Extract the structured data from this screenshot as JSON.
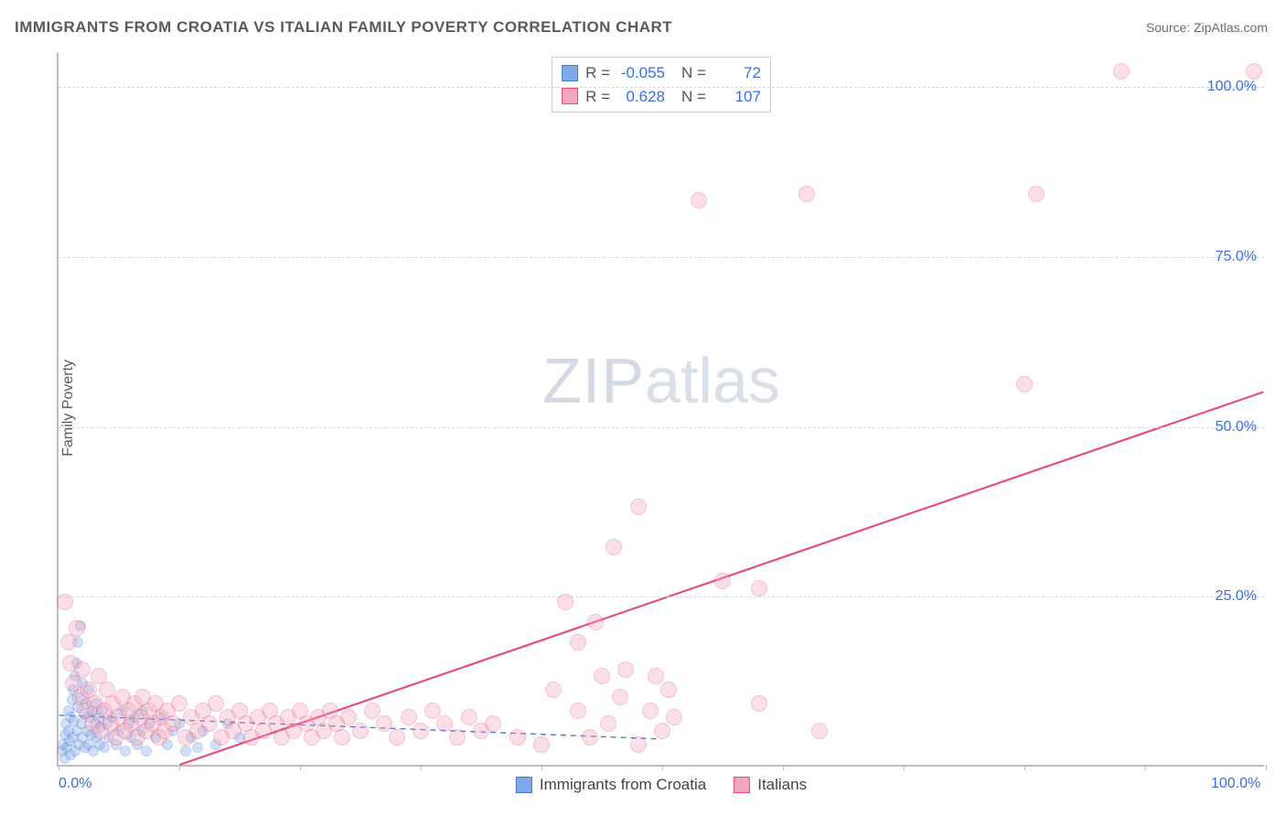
{
  "title": "IMMIGRANTS FROM CROATIA VS ITALIAN FAMILY POVERTY CORRELATION CHART",
  "source_label": "Source: ZipAtlas.com",
  "ylabel": "Family Poverty",
  "watermark": {
    "zip": "ZIP",
    "atlas": "atlas"
  },
  "chart": {
    "type": "scatter",
    "xlim": [
      0,
      100
    ],
    "ylim": [
      0,
      105
    ],
    "background_color": "#ffffff",
    "grid_color": "#d8d8d8",
    "axis_color": "#bdbdbd",
    "tick_label_color": "#3a6fd8",
    "x_ticks": [
      0,
      10,
      20,
      30,
      40,
      50,
      60,
      70,
      80,
      90,
      100
    ],
    "y_gridlines": [
      25,
      50,
      75,
      100
    ],
    "x_tick_labels": [
      {
        "x": 0,
        "label": "0.0%"
      },
      {
        "x": 100,
        "label": "100.0%"
      }
    ],
    "y_tick_labels": [
      {
        "y": 25,
        "label": "25.0%"
      },
      {
        "y": 50,
        "label": "50.0%"
      },
      {
        "y": 75,
        "label": "75.0%"
      },
      {
        "y": 100,
        "label": "100.0%"
      }
    ],
    "marker_radius": 9,
    "marker_radius_small": 6,
    "marker_opacity": 0.35,
    "series": [
      {
        "name": "Immigrants from Croatia",
        "color_fill": "#7ea8e8",
        "color_stroke": "#4a7bd0",
        "R": "-0.055",
        "N": "72",
        "trend": {
          "x1": 0,
          "y1": 7.3,
          "x2": 50,
          "y2": 3.8,
          "dash": "6,5",
          "width": 1.4
        },
        "points": [
          {
            "x": 0.3,
            "y": 2.0
          },
          {
            "x": 0.4,
            "y": 3.0
          },
          {
            "x": 0.5,
            "y": 1.0
          },
          {
            "x": 0.5,
            "y": 4.5
          },
          {
            "x": 0.6,
            "y": 6.0
          },
          {
            "x": 0.7,
            "y": 2.5
          },
          {
            "x": 0.8,
            "y": 5.0
          },
          {
            "x": 0.8,
            "y": 8.0
          },
          {
            "x": 0.9,
            "y": 3.5
          },
          {
            "x": 1.0,
            "y": 7.0
          },
          {
            "x": 1.0,
            "y": 1.5
          },
          {
            "x": 1.1,
            "y": 9.5
          },
          {
            "x": 1.2,
            "y": 4.0
          },
          {
            "x": 1.2,
            "y": 11.0
          },
          {
            "x": 1.3,
            "y": 6.5
          },
          {
            "x": 1.4,
            "y": 2.0
          },
          {
            "x": 1.4,
            "y": 13.0
          },
          {
            "x": 1.5,
            "y": 5.0
          },
          {
            "x": 1.5,
            "y": 15.0
          },
          {
            "x": 1.6,
            "y": 8.5
          },
          {
            "x": 1.6,
            "y": 18.0
          },
          {
            "x": 1.7,
            "y": 3.0
          },
          {
            "x": 1.8,
            "y": 10.0
          },
          {
            "x": 1.8,
            "y": 20.5
          },
          {
            "x": 1.9,
            "y": 6.0
          },
          {
            "x": 2.0,
            "y": 4.0
          },
          {
            "x": 2.0,
            "y": 12.0
          },
          {
            "x": 2.1,
            "y": 7.5
          },
          {
            "x": 2.2,
            "y": 2.5
          },
          {
            "x": 2.3,
            "y": 9.0
          },
          {
            "x": 2.4,
            "y": 5.0
          },
          {
            "x": 2.5,
            "y": 11.0
          },
          {
            "x": 2.5,
            "y": 3.0
          },
          {
            "x": 2.6,
            "y": 7.0
          },
          {
            "x": 2.7,
            "y": 4.5
          },
          {
            "x": 2.8,
            "y": 8.0
          },
          {
            "x": 2.9,
            "y": 2.0
          },
          {
            "x": 3.0,
            "y": 6.0
          },
          {
            "x": 3.1,
            "y": 9.0
          },
          {
            "x": 3.2,
            "y": 4.0
          },
          {
            "x": 3.3,
            "y": 7.0
          },
          {
            "x": 3.4,
            "y": 3.0
          },
          {
            "x": 3.5,
            "y": 5.5
          },
          {
            "x": 3.6,
            "y": 8.0
          },
          {
            "x": 3.8,
            "y": 2.5
          },
          {
            "x": 4.0,
            "y": 6.0
          },
          {
            "x": 4.2,
            "y": 4.0
          },
          {
            "x": 4.5,
            "y": 7.0
          },
          {
            "x": 4.8,
            "y": 3.0
          },
          {
            "x": 5.0,
            "y": 5.0
          },
          {
            "x": 5.3,
            "y": 8.0
          },
          {
            "x": 5.5,
            "y": 2.0
          },
          {
            "x": 5.8,
            "y": 6.0
          },
          {
            "x": 6.0,
            "y": 4.0
          },
          {
            "x": 6.3,
            "y": 7.0
          },
          {
            "x": 6.5,
            "y": 3.0
          },
          {
            "x": 6.8,
            "y": 5.0
          },
          {
            "x": 7.0,
            "y": 8.0
          },
          {
            "x": 7.3,
            "y": 2.0
          },
          {
            "x": 7.5,
            "y": 6.0
          },
          {
            "x": 8.0,
            "y": 4.0
          },
          {
            "x": 8.5,
            "y": 7.0
          },
          {
            "x": 9.0,
            "y": 3.0
          },
          {
            "x": 9.5,
            "y": 5.0
          },
          {
            "x": 10.0,
            "y": 6.0
          },
          {
            "x": 10.5,
            "y": 2.0
          },
          {
            "x": 11.0,
            "y": 4.0
          },
          {
            "x": 12.0,
            "y": 5.0
          },
          {
            "x": 13.0,
            "y": 3.0
          },
          {
            "x": 14.0,
            "y": 6.0
          },
          {
            "x": 15.0,
            "y": 4.0
          },
          {
            "x": 11.5,
            "y": 2.5
          }
        ]
      },
      {
        "name": "Italians",
        "color_fill": "#f4a6bd",
        "color_stroke": "#e64d7a",
        "R": "0.628",
        "N": "107",
        "trend": {
          "x1": 10,
          "y1": 0,
          "x2": 100,
          "y2": 55,
          "dash": "none",
          "width": 2.2
        },
        "points": [
          {
            "x": 0.5,
            "y": 24.0
          },
          {
            "x": 0.8,
            "y": 18.0
          },
          {
            "x": 1.0,
            "y": 15.0
          },
          {
            "x": 1.2,
            "y": 12.0
          },
          {
            "x": 1.5,
            "y": 20.0
          },
          {
            "x": 1.8,
            "y": 10.0
          },
          {
            "x": 2.0,
            "y": 14.0
          },
          {
            "x": 2.2,
            "y": 8.0
          },
          {
            "x": 2.5,
            "y": 11.0
          },
          {
            "x": 2.8,
            "y": 6.0
          },
          {
            "x": 3.0,
            "y": 9.0
          },
          {
            "x": 3.3,
            "y": 13.0
          },
          {
            "x": 3.5,
            "y": 5.0
          },
          {
            "x": 3.8,
            "y": 8.0
          },
          {
            "x": 4.0,
            "y": 11.0
          },
          {
            "x": 4.3,
            "y": 6.0
          },
          {
            "x": 4.5,
            "y": 9.0
          },
          {
            "x": 4.8,
            "y": 4.0
          },
          {
            "x": 5.0,
            "y": 7.0
          },
          {
            "x": 5.3,
            "y": 10.0
          },
          {
            "x": 5.5,
            "y": 5.0
          },
          {
            "x": 5.8,
            "y": 8.0
          },
          {
            "x": 6.0,
            "y": 6.0
          },
          {
            "x": 6.3,
            "y": 9.0
          },
          {
            "x": 6.5,
            "y": 4.0
          },
          {
            "x": 6.8,
            "y": 7.0
          },
          {
            "x": 7.0,
            "y": 10.0
          },
          {
            "x": 7.3,
            "y": 5.0
          },
          {
            "x": 7.5,
            "y": 8.0
          },
          {
            "x": 7.8,
            "y": 6.0
          },
          {
            "x": 8.0,
            "y": 9.0
          },
          {
            "x": 8.3,
            "y": 4.0
          },
          {
            "x": 8.5,
            "y": 7.0
          },
          {
            "x": 8.8,
            "y": 5.0
          },
          {
            "x": 9.0,
            "y": 8.0
          },
          {
            "x": 9.5,
            "y": 6.0
          },
          {
            "x": 10.0,
            "y": 9.0
          },
          {
            "x": 10.5,
            "y": 4.0
          },
          {
            "x": 11.0,
            "y": 7.0
          },
          {
            "x": 11.5,
            "y": 5.0
          },
          {
            "x": 12.0,
            "y": 8.0
          },
          {
            "x": 12.5,
            "y": 6.0
          },
          {
            "x": 13.0,
            "y": 9.0
          },
          {
            "x": 13.5,
            "y": 4.0
          },
          {
            "x": 14.0,
            "y": 7.0
          },
          {
            "x": 14.5,
            "y": 5.0
          },
          {
            "x": 15.0,
            "y": 8.0
          },
          {
            "x": 15.5,
            "y": 6.0
          },
          {
            "x": 16.0,
            "y": 4.0
          },
          {
            "x": 16.5,
            "y": 7.0
          },
          {
            "x": 17.0,
            "y": 5.0
          },
          {
            "x": 17.5,
            "y": 8.0
          },
          {
            "x": 18.0,
            "y": 6.0
          },
          {
            "x": 18.5,
            "y": 4.0
          },
          {
            "x": 19.0,
            "y": 7.0
          },
          {
            "x": 19.5,
            "y": 5.0
          },
          {
            "x": 20.0,
            "y": 8.0
          },
          {
            "x": 20.5,
            "y": 6.0
          },
          {
            "x": 21.0,
            "y": 4.0
          },
          {
            "x": 21.5,
            "y": 7.0
          },
          {
            "x": 22.0,
            "y": 5.0
          },
          {
            "x": 22.5,
            "y": 8.0
          },
          {
            "x": 23.0,
            "y": 6.0
          },
          {
            "x": 23.5,
            "y": 4.0
          },
          {
            "x": 24.0,
            "y": 7.0
          },
          {
            "x": 25.0,
            "y": 5.0
          },
          {
            "x": 26.0,
            "y": 8.0
          },
          {
            "x": 27.0,
            "y": 6.0
          },
          {
            "x": 28.0,
            "y": 4.0
          },
          {
            "x": 29.0,
            "y": 7.0
          },
          {
            "x": 30.0,
            "y": 5.0
          },
          {
            "x": 31.0,
            "y": 8.0
          },
          {
            "x": 32.0,
            "y": 6.0
          },
          {
            "x": 33.0,
            "y": 4.0
          },
          {
            "x": 34.0,
            "y": 7.0
          },
          {
            "x": 35.0,
            "y": 5.0
          },
          {
            "x": 36.0,
            "y": 6.0
          },
          {
            "x": 38.0,
            "y": 4.0
          },
          {
            "x": 40.0,
            "y": 3.0
          },
          {
            "x": 41.0,
            "y": 11.0
          },
          {
            "x": 42.0,
            "y": 24.0
          },
          {
            "x": 43.0,
            "y": 8.0
          },
          {
            "x": 43.0,
            "y": 18.0
          },
          {
            "x": 44.0,
            "y": 4.0
          },
          {
            "x": 44.5,
            "y": 21.0
          },
          {
            "x": 45.0,
            "y": 13.0
          },
          {
            "x": 45.5,
            "y": 6.0
          },
          {
            "x": 46.0,
            "y": 32.0
          },
          {
            "x": 46.5,
            "y": 10.0
          },
          {
            "x": 47.0,
            "y": 14.0
          },
          {
            "x": 48.0,
            "y": 3.0
          },
          {
            "x": 48.0,
            "y": 38.0
          },
          {
            "x": 49.0,
            "y": 8.0
          },
          {
            "x": 49.5,
            "y": 13.0
          },
          {
            "x": 50.0,
            "y": 5.0
          },
          {
            "x": 50.5,
            "y": 11.0
          },
          {
            "x": 51.0,
            "y": 7.0
          },
          {
            "x": 53.0,
            "y": 83.0
          },
          {
            "x": 55.0,
            "y": 27.0
          },
          {
            "x": 58.0,
            "y": 26.0
          },
          {
            "x": 58.0,
            "y": 9.0
          },
          {
            "x": 62.0,
            "y": 84.0
          },
          {
            "x": 63.0,
            "y": 5.0
          },
          {
            "x": 80.0,
            "y": 56.0
          },
          {
            "x": 81.0,
            "y": 84.0
          },
          {
            "x": 88.0,
            "y": 102.0
          },
          {
            "x": 99.0,
            "y": 102.0
          }
        ]
      }
    ]
  },
  "legend": {
    "items": [
      {
        "label": "Immigrants from Croatia",
        "fill": "#7ea8e8",
        "stroke": "#4a7bd0"
      },
      {
        "label": "Italians",
        "fill": "#f4a6bd",
        "stroke": "#e64d7a"
      }
    ]
  }
}
